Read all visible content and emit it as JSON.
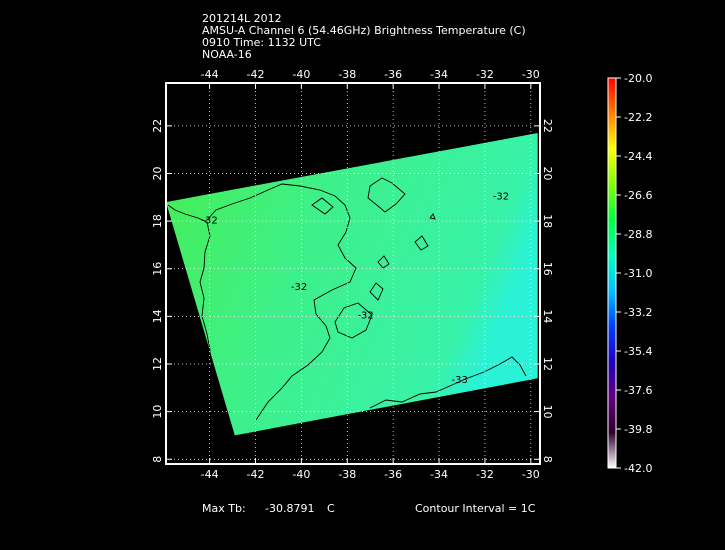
{
  "header": {
    "line1": "201214L 2012",
    "line2": "AMSU-A Channel 6 (54.46GHz) Brightness Temperature (C)",
    "line3": "0910 Time: 1132 UTC",
    "line4": "NOAA-16"
  },
  "map": {
    "lon_ticks": [
      "-44",
      "-42",
      "-40",
      "-38",
      "-36",
      "-34",
      "-32",
      "-30"
    ],
    "lat_ticks": [
      "8",
      "10",
      "12",
      "14",
      "16",
      "18",
      "20",
      "22"
    ],
    "lon_range": [
      -45.9,
      -29.6
    ],
    "lat_range": [
      7.8,
      23.8
    ],
    "grid": "dotted",
    "swath_corners_lonlat": [
      [
        -45.9,
        18.8
      ],
      [
        -29.7,
        21.7
      ],
      [
        -29.7,
        11.4
      ],
      [
        -42.9,
        9.0
      ]
    ],
    "contour_labels": [
      {
        "text": "-32",
        "lon": -44.0,
        "lat": 17.9
      },
      {
        "text": "-32",
        "lon": -31.3,
        "lat": 18.9
      },
      {
        "text": "-32",
        "lon": -40.1,
        "lat": 15.1
      },
      {
        "text": "-32",
        "lon": -37.2,
        "lat": 13.9
      },
      {
        "text": "-33",
        "lon": -33.1,
        "lat": 11.2
      }
    ],
    "contour_interval_c": 1,
    "colors": {
      "swath_mid": "#3ef08a",
      "swath_warm_edge": "#46ee52",
      "swath_cool_corner": "#2af2d6",
      "contour": "#000000"
    }
  },
  "colorbar": {
    "labels": [
      "-20.0",
      "-22.2",
      "-24.4",
      "-26.6",
      "-28.8",
      "-31.0",
      "-33.2",
      "-35.4",
      "-37.6",
      "-39.8",
      "-42.0"
    ],
    "range_c": [
      -42.0,
      -20.0
    ],
    "palette": [
      "#ff0000",
      "#ff7f00",
      "#ffff00",
      "#7fff00",
      "#00ff40",
      "#00ffc0",
      "#00c0ff",
      "#0040ff",
      "#2000c0",
      "#600080",
      "#300030",
      "#ffffff"
    ]
  },
  "footer": {
    "max_label": "Max Tb:",
    "max_value": "-30.8791",
    "max_unit": "C",
    "contour_interval": "Contour Interval = 1C"
  }
}
